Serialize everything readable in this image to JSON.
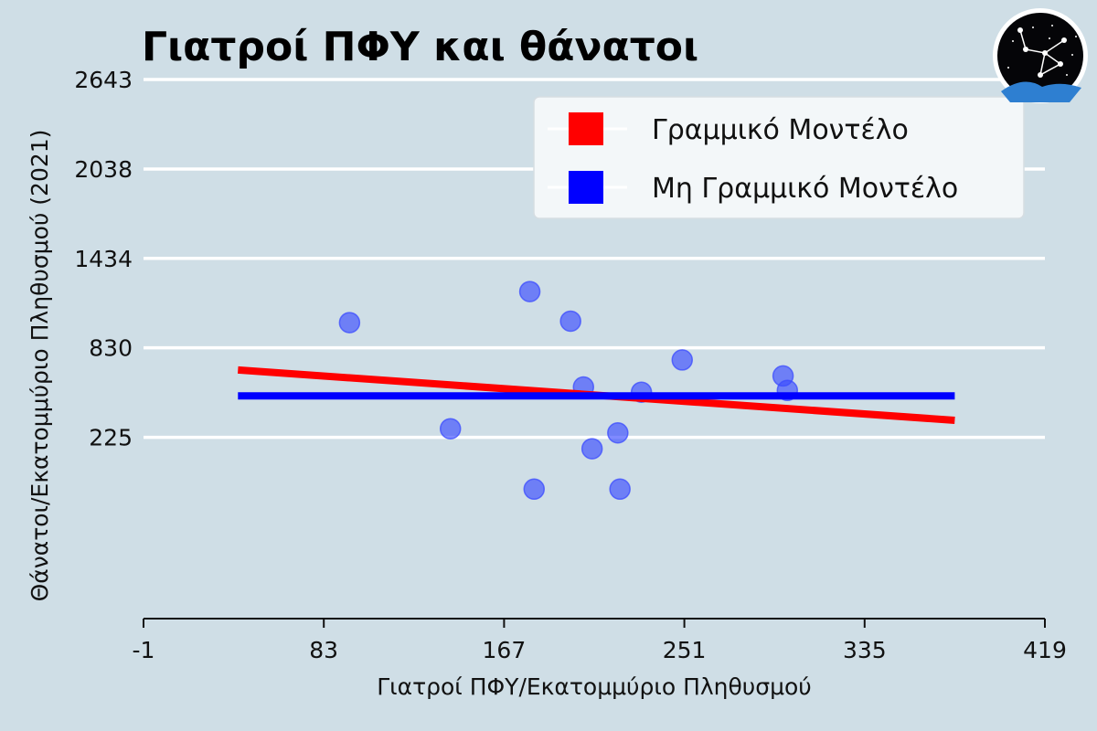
{
  "chart_data": {
    "type": "scatter",
    "title": "Γιατροί ΠΦΥ και θάνατοι",
    "xlabel": "Γιατροί ΠΦΥ/Εκατομμύριο Πληθυσμού",
    "ylabel": "Θάνατοι/Εκατομμύριο Πληθυσμού (2021)",
    "xlim": [
      -1,
      419
    ],
    "ylim": [
      -1000,
      2643
    ],
    "xticks": [
      -1,
      83,
      167,
      251,
      335,
      419
    ],
    "yticks": [
      225,
      830,
      1434,
      2038,
      2643
    ],
    "xtick_labels": [
      "-1",
      "83",
      "167",
      "251",
      "335",
      "419"
    ],
    "ytick_labels": [
      "225",
      "830",
      "1434",
      "2038",
      "2643"
    ],
    "grid": "horizontal",
    "legend_position": "top-right",
    "points": {
      "color": "#3b4bff",
      "x": [
        95,
        142,
        179,
        181,
        198,
        204,
        208,
        220,
        221,
        231,
        250,
        297,
        299
      ],
      "y": [
        1000,
        283,
        1210,
        -125,
        1010,
        565,
        148,
        255,
        -125,
        530,
        748,
        640,
        542
      ]
    },
    "series": [
      {
        "name": "Γραμμικό Μοντέλο",
        "type": "line",
        "color": "#ff0000",
        "x": [
          43,
          377
        ],
        "y": [
          680,
          340
        ]
      },
      {
        "name": "Μη Γραμμικό Μοντέλο",
        "type": "line",
        "color": "#0000ff",
        "x": [
          43,
          377
        ],
        "y": [
          505,
          505
        ]
      }
    ]
  }
}
